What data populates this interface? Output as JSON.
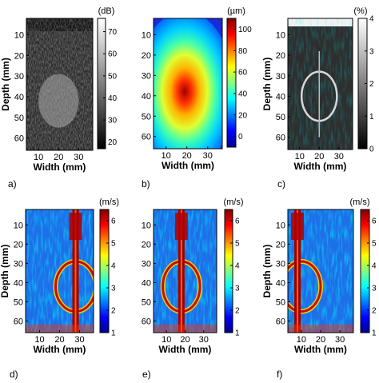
{
  "chart_data": [
    {
      "type": "heatmap",
      "panel_label": "a)",
      "xlabel": "Width (mm)",
      "ylabel": "Depth (mm)",
      "colorbar_unit": "(dB)",
      "colormap": "gray",
      "xticks": [
        10,
        20,
        30
      ],
      "yticks": [
        10,
        20,
        30,
        40,
        50,
        60
      ],
      "xlim": [
        4,
        37
      ],
      "ylim": [
        66,
        2
      ],
      "colorbar_ticks": [
        20,
        30,
        40,
        50,
        60,
        70
      ],
      "colorbar_range": [
        17,
        76
      ],
      "description_values": {
        "ellipse_center": [
          20,
          42
        ],
        "ellipse_semi_axes": [
          10,
          13
        ]
      }
    },
    {
      "type": "heatmap",
      "panel_label": "b)",
      "xlabel": "Width (mm)",
      "ylabel": "",
      "colorbar_unit": "(µm)",
      "colormap": "jet",
      "xticks": [
        10,
        20,
        30
      ],
      "yticks": [
        10,
        20,
        30,
        40,
        50,
        60
      ],
      "xlim": [
        4,
        37
      ],
      "ylim": [
        66,
        2
      ],
      "colorbar_ticks": [
        0,
        20,
        40,
        60,
        80,
        100
      ],
      "colorbar_range": [
        -10,
        110
      ],
      "description_values": {
        "peak_center": [
          19,
          38
        ],
        "peak_value": 100
      }
    },
    {
      "type": "heatmap",
      "panel_label": "c)",
      "xlabel": "Width (mm)",
      "ylabel": "Depth (mm)",
      "colorbar_unit": "(%)",
      "colormap": "gray",
      "xticks": [
        10,
        20,
        30
      ],
      "yticks": [
        10,
        20,
        30,
        40,
        50,
        60
      ],
      "xlim": [
        4,
        37
      ],
      "ylim": [
        66,
        2
      ],
      "colorbar_ticks": [
        0,
        1,
        2,
        3,
        4
      ],
      "colorbar_range": [
        0,
        4
      ],
      "description_values": {
        "ring_center": [
          20,
          40
        ],
        "ring_semi_axes": [
          9,
          12
        ]
      }
    },
    {
      "type": "heatmap",
      "panel_label": "d)",
      "xlabel": "Width (mm)",
      "ylabel": "Depth (mm)",
      "colorbar_unit": "(m/s)",
      "colormap": "jet",
      "xticks": [
        10,
        20,
        30
      ],
      "yticks": [
        10,
        20,
        30,
        40,
        50,
        60
      ],
      "xlim": [
        3,
        37
      ],
      "ylim": [
        66,
        2
      ],
      "colorbar_ticks": [
        1,
        2,
        3,
        4,
        5,
        6
      ],
      "colorbar_range": [
        1,
        6.5
      ],
      "description_values": {
        "needle_x": 28,
        "inclusion_center": [
          28,
          42
        ]
      }
    },
    {
      "type": "heatmap",
      "panel_label": "e)",
      "xlabel": "Width (mm)",
      "ylabel": "",
      "colorbar_unit": "(m/s)",
      "colormap": "jet",
      "xticks": [
        10,
        20,
        30
      ],
      "yticks": [
        10,
        20,
        30,
        40,
        50,
        60
      ],
      "xlim": [
        3,
        37
      ],
      "ylim": [
        66,
        2
      ],
      "colorbar_ticks": [
        1,
        2,
        3,
        4,
        5,
        6
      ],
      "colorbar_range": [
        1,
        6.5
      ],
      "description_values": {
        "needle_x": 18,
        "inclusion_center": [
          18,
          42
        ]
      }
    },
    {
      "type": "heatmap",
      "panel_label": "f)",
      "xlabel": "Width (mm)",
      "ylabel": "Depth (mm)",
      "colorbar_unit": "(m/s)",
      "colormap": "jet",
      "xticks": [
        10,
        20,
        30
      ],
      "yticks": [
        10,
        20,
        30,
        40,
        50,
        60
      ],
      "xlim": [
        3,
        37
      ],
      "ylim": [
        66,
        2
      ],
      "colorbar_ticks": [
        1,
        2,
        3,
        4,
        5,
        6
      ],
      "colorbar_range": [
        1,
        6.5
      ],
      "description_values": {
        "needle_x": 8,
        "inclusion_center": [
          10,
          42
        ]
      }
    }
  ]
}
